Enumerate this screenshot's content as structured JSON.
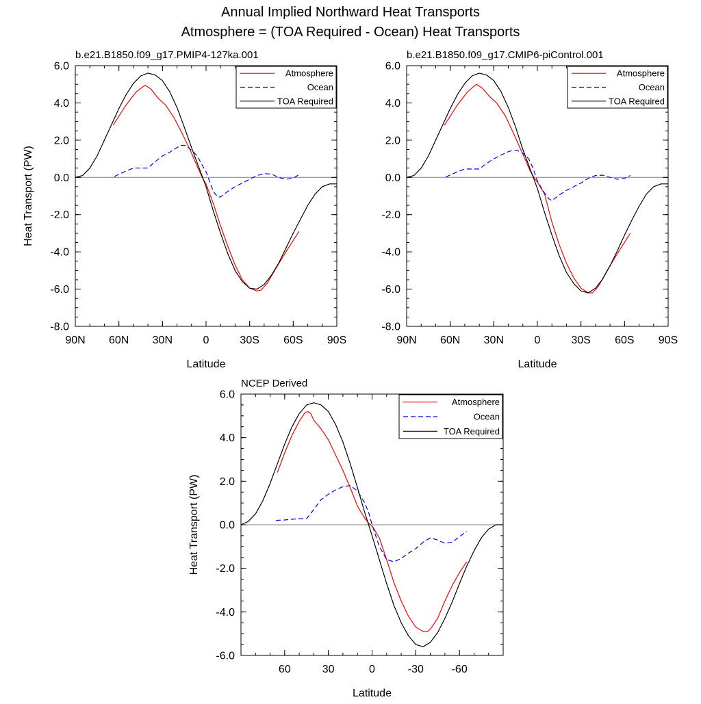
{
  "page_title": "Annual Implied Northward Heat Transports",
  "page_subtitle": "Atmosphere = (TOA Required - Ocean) Heat Transports",
  "colors": {
    "atmosphere": "#ff0000",
    "ocean": "#0000ff",
    "toa": "#000000",
    "zero_line": "#7f7f7f"
  },
  "chart_data": [
    {
      "type": "line",
      "title": "b.e21.B1850.f09_g17.PMIP4-127ka.001",
      "xlabel": "Latitude",
      "ylabel": "Heat Transport (PW)",
      "xlim": [
        90,
        -90
      ],
      "ylim": [
        -8,
        6
      ],
      "xticks": [
        90,
        60,
        30,
        0,
        -30,
        -60,
        -90
      ],
      "xtick_labels": [
        "90N",
        "60N",
        "30N",
        "0",
        "30S",
        "60S",
        "90S"
      ],
      "yticks": [
        -8,
        -6,
        -4,
        -2,
        0,
        2,
        4,
        6
      ],
      "ytick_labels": [
        "-8.0",
        "-6.0",
        "-4.0",
        "-2.0",
        "0.0",
        "2.0",
        "4.0",
        "6.0"
      ],
      "legend": [
        "Atmosphere",
        "Ocean",
        "TOA Required"
      ],
      "legend_position": "top-right",
      "series": [
        {
          "name": "Atmosphere",
          "x": [
            64,
            55,
            48,
            42,
            38,
            33,
            28,
            22,
            16,
            10,
            5,
            2,
            0,
            -5,
            -10,
            -15,
            -20,
            -25,
            -30,
            -35,
            -38,
            -42,
            -48,
            -55,
            -64
          ],
          "y": [
            2.8,
            3.9,
            4.6,
            4.95,
            4.75,
            4.25,
            3.9,
            3.2,
            2.3,
            1.3,
            0.4,
            -0.1,
            -0.35,
            -1.4,
            -2.6,
            -3.7,
            -4.7,
            -5.5,
            -5.95,
            -6.1,
            -6.05,
            -5.7,
            -4.9,
            -4.0,
            -2.9
          ]
        },
        {
          "name": "Ocean",
          "x": [
            63,
            55,
            50,
            45,
            40,
            35,
            30,
            25,
            20,
            17,
            14,
            10,
            6,
            3,
            0,
            -5,
            -8,
            -10,
            -15,
            -20,
            -25,
            -30,
            -35,
            -40,
            -45,
            -50,
            -55,
            -60,
            -64
          ],
          "y": [
            0.05,
            0.35,
            0.5,
            0.5,
            0.5,
            0.85,
            1.15,
            1.35,
            1.6,
            1.72,
            1.72,
            1.45,
            1.15,
            0.7,
            0.3,
            -0.75,
            -1.05,
            -1.05,
            -0.75,
            -0.5,
            -0.3,
            -0.1,
            0.1,
            0.2,
            0.18,
            0.0,
            -0.1,
            -0.05,
            0.15
          ]
        },
        {
          "name": "TOA Required",
          "x": [
            90,
            85,
            80,
            75,
            70,
            65,
            60,
            55,
            50,
            45,
            40,
            35,
            30,
            25,
            20,
            15,
            10,
            5,
            0,
            -5,
            -10,
            -15,
            -20,
            -25,
            -30,
            -35,
            -40,
            -45,
            -50,
            -55,
            -60,
            -65,
            -70,
            -75,
            -80,
            -85,
            -90
          ],
          "y": [
            0.0,
            0.1,
            0.5,
            1.15,
            2.0,
            2.85,
            3.7,
            4.45,
            5.05,
            5.45,
            5.6,
            5.5,
            5.2,
            4.6,
            3.75,
            2.7,
            1.6,
            0.55,
            -0.5,
            -1.8,
            -3.0,
            -4.1,
            -5.0,
            -5.6,
            -5.95,
            -6.0,
            -5.75,
            -5.25,
            -4.6,
            -3.8,
            -3.0,
            -2.25,
            -1.5,
            -0.9,
            -0.5,
            -0.35,
            -0.35
          ]
        }
      ]
    },
    {
      "type": "line",
      "title": "b.e21.B1850.f09_g17.CMIP6-piControl.001",
      "xlabel": "Latitude",
      "ylabel": "",
      "xlim": [
        90,
        -90
      ],
      "ylim": [
        -8,
        6
      ],
      "xticks": [
        90,
        60,
        30,
        0,
        -30,
        -60,
        -90
      ],
      "xtick_labels": [
        "90N",
        "60N",
        "30N",
        "0",
        "30S",
        "60S",
        "90S"
      ],
      "yticks": [
        -8,
        -6,
        -4,
        -2,
        0,
        2,
        4,
        6
      ],
      "ytick_labels": [
        "-8.0",
        "-6.0",
        "-4.0",
        "-2.0",
        "0.0",
        "2.0",
        "4.0",
        "6.0"
      ],
      "legend": [
        "Atmosphere",
        "Ocean",
        "TOA Required"
      ],
      "legend_position": "top-right",
      "series": [
        {
          "name": "Atmosphere",
          "x": [
            64,
            55,
            48,
            42,
            38,
            33,
            28,
            22,
            16,
            10,
            5,
            2,
            0,
            -5,
            -10,
            -15,
            -20,
            -25,
            -30,
            -35,
            -38,
            -42,
            -48,
            -55,
            -64
          ],
          "y": [
            2.8,
            3.9,
            4.6,
            5.0,
            4.8,
            4.35,
            4.0,
            3.3,
            2.3,
            1.25,
            0.35,
            -0.05,
            -0.25,
            -0.9,
            -2.4,
            -3.6,
            -4.6,
            -5.4,
            -5.95,
            -6.2,
            -6.2,
            -5.85,
            -5.0,
            -4.1,
            -3.0
          ]
        },
        {
          "name": "Ocean",
          "x": [
            63,
            55,
            50,
            45,
            40,
            35,
            30,
            25,
            20,
            17,
            14,
            10,
            6,
            3,
            0,
            -5,
            -8,
            -10,
            -15,
            -20,
            -25,
            -30,
            -35,
            -40,
            -45,
            -50,
            -55,
            -60,
            -64
          ],
          "y": [
            0.02,
            0.3,
            0.45,
            0.45,
            0.45,
            0.75,
            1.0,
            1.2,
            1.38,
            1.45,
            1.45,
            1.3,
            1.0,
            0.5,
            -0.2,
            -0.85,
            -1.15,
            -1.25,
            -0.95,
            -0.7,
            -0.5,
            -0.3,
            -0.05,
            0.1,
            0.12,
            0.0,
            -0.1,
            -0.05,
            0.1
          ]
        },
        {
          "name": "TOA Required",
          "x": [
            90,
            85,
            80,
            75,
            70,
            65,
            60,
            55,
            50,
            45,
            40,
            35,
            30,
            25,
            20,
            15,
            10,
            5,
            0,
            -5,
            -10,
            -15,
            -20,
            -25,
            -30,
            -35,
            -40,
            -45,
            -50,
            -55,
            -60,
            -65,
            -70,
            -75,
            -80,
            -85,
            -90
          ],
          "y": [
            0.0,
            0.1,
            0.5,
            1.15,
            2.0,
            2.85,
            3.7,
            4.45,
            5.05,
            5.45,
            5.6,
            5.5,
            5.2,
            4.6,
            3.75,
            2.7,
            1.5,
            0.45,
            -0.6,
            -1.9,
            -3.1,
            -4.2,
            -5.1,
            -5.7,
            -6.1,
            -6.2,
            -5.95,
            -5.45,
            -4.75,
            -3.95,
            -3.1,
            -2.3,
            -1.55,
            -0.9,
            -0.5,
            -0.35,
            -0.35
          ]
        }
      ]
    },
    {
      "type": "line",
      "title": "NCEP Derived",
      "xlabel": "Latitude",
      "ylabel": "Heat Transport (PW)",
      "xlim": [
        90,
        -90
      ],
      "ylim": [
        -6,
        6
      ],
      "xticks": [
        60,
        30,
        0,
        -30,
        -60
      ],
      "xtick_labels": [
        "60",
        "30",
        "0",
        "-30",
        "-60"
      ],
      "yticks": [
        -6,
        -4,
        -2,
        0,
        2,
        4,
        6
      ],
      "ytick_labels": [
        "-6.0",
        "-4.0",
        "-2.0",
        "0.0",
        "2.0",
        "4.0",
        "6.0"
      ],
      "legend": [
        "Atmosphere",
        "Ocean",
        "TOA Required"
      ],
      "legend_position": "top-right",
      "series": [
        {
          "name": "Atmosphere",
          "x": [
            65,
            60,
            55,
            50,
            46,
            44,
            42,
            40,
            35,
            30,
            25,
            20,
            15,
            10,
            5,
            2,
            0,
            -5,
            -10,
            -15,
            -20,
            -25,
            -30,
            -35,
            -38,
            -40,
            -45,
            -50,
            -55,
            -60,
            -65
          ],
          "y": [
            2.4,
            3.3,
            4.1,
            4.75,
            5.15,
            5.2,
            5.1,
            4.8,
            4.4,
            3.9,
            3.2,
            2.5,
            1.7,
            0.85,
            0.3,
            0.05,
            -0.05,
            -0.6,
            -1.6,
            -2.65,
            -3.5,
            -4.2,
            -4.7,
            -4.9,
            -4.9,
            -4.8,
            -4.3,
            -3.5,
            -2.8,
            -2.2,
            -1.7
          ]
        },
        {
          "name": "Ocean",
          "x": [
            66,
            60,
            55,
            50,
            45,
            40,
            35,
            30,
            25,
            20,
            15,
            10,
            5,
            2,
            0,
            -5,
            -10,
            -15,
            -20,
            -25,
            -30,
            -35,
            -40,
            -45,
            -50,
            -55,
            -60,
            -65
          ],
          "y": [
            0.2,
            0.22,
            0.25,
            0.28,
            0.28,
            0.7,
            1.15,
            1.4,
            1.6,
            1.75,
            1.8,
            1.55,
            1.0,
            0.5,
            0.0,
            -1.0,
            -1.6,
            -1.7,
            -1.55,
            -1.3,
            -1.1,
            -0.8,
            -0.6,
            -0.7,
            -0.85,
            -0.8,
            -0.55,
            -0.3
          ]
        },
        {
          "name": "TOA Required",
          "x": [
            90,
            85,
            80,
            75,
            70,
            65,
            60,
            55,
            50,
            45,
            40,
            35,
            30,
            25,
            20,
            15,
            10,
            5,
            0,
            -5,
            -10,
            -15,
            -20,
            -25,
            -30,
            -35,
            -40,
            -45,
            -50,
            -55,
            -60,
            -65,
            -70,
            -75,
            -80,
            -85,
            -90
          ],
          "y": [
            0.0,
            0.15,
            0.5,
            1.1,
            1.9,
            2.8,
            3.7,
            4.5,
            5.1,
            5.5,
            5.6,
            5.5,
            5.2,
            4.6,
            3.8,
            2.8,
            1.7,
            0.55,
            -0.5,
            -1.6,
            -2.7,
            -3.7,
            -4.5,
            -5.1,
            -5.5,
            -5.6,
            -5.4,
            -4.95,
            -4.3,
            -3.55,
            -2.7,
            -1.9,
            -1.2,
            -0.6,
            -0.2,
            0.0,
            0.0
          ]
        }
      ]
    }
  ]
}
